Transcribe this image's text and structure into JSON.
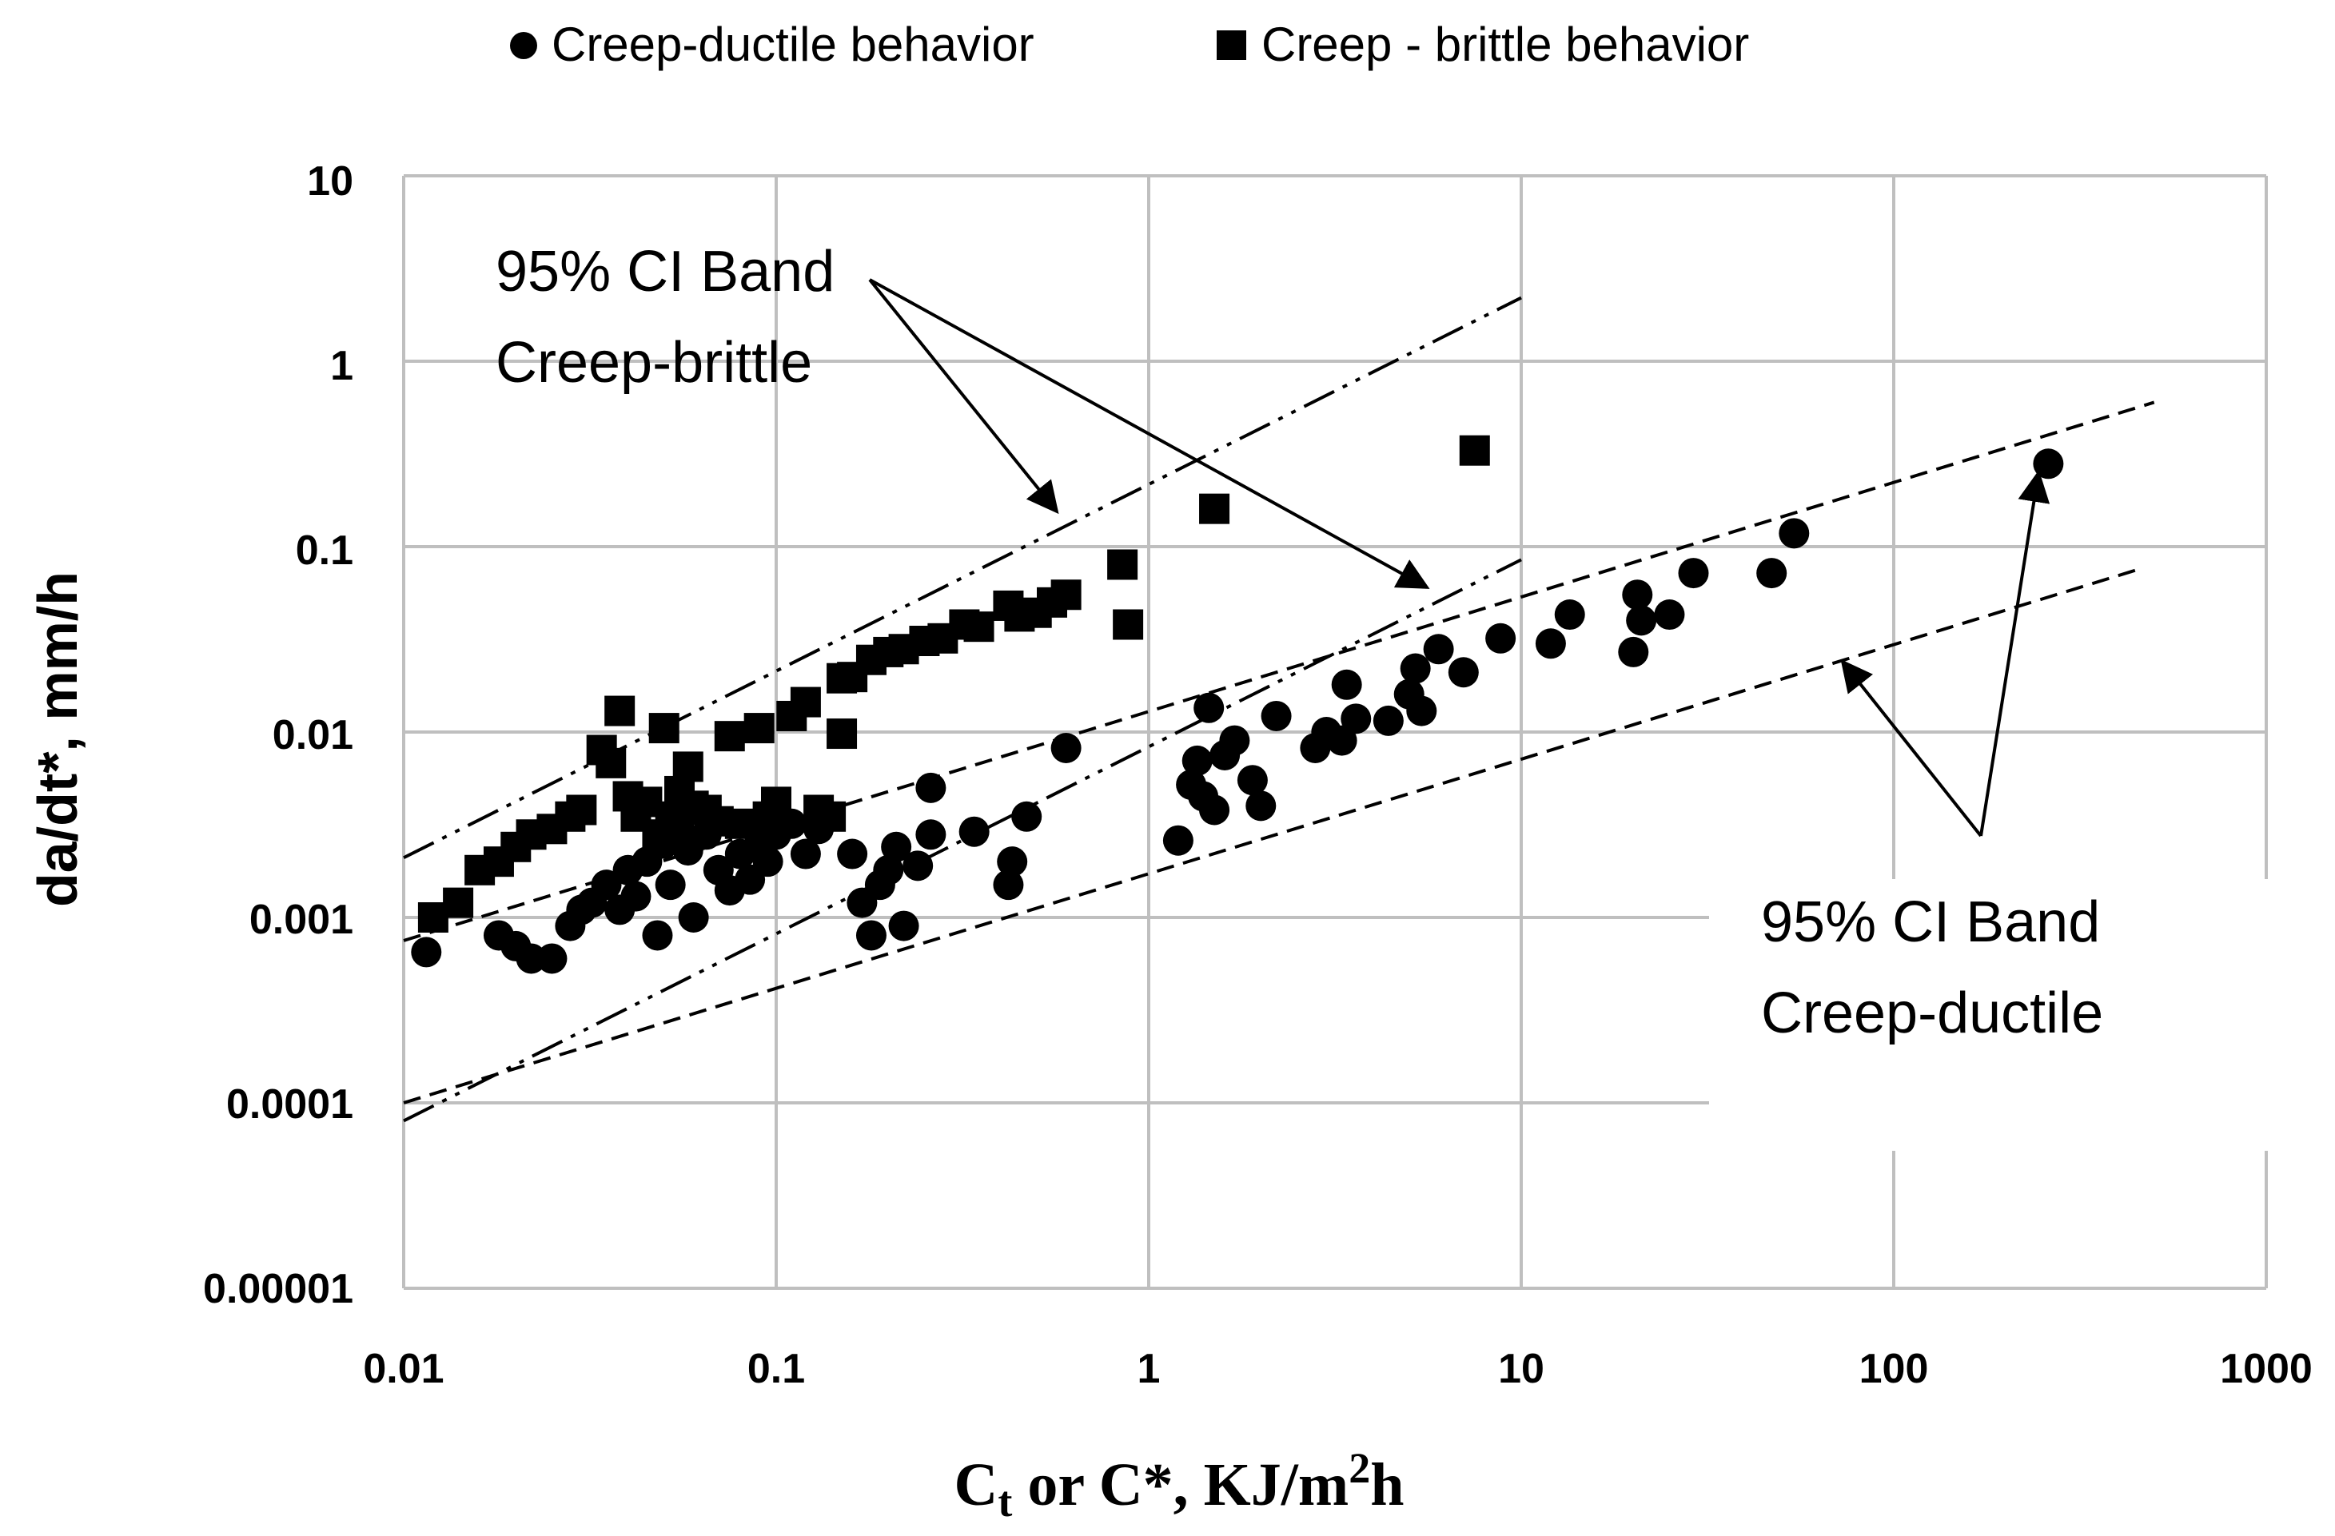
{
  "chart_data": {
    "type": "scatter",
    "xscale": "log",
    "yscale": "log",
    "xlim": [
      0.01,
      1000
    ],
    "ylim": [
      1e-05,
      10
    ],
    "x_ticks": [
      "0.01",
      "0.1",
      "1",
      "10",
      "100",
      "1000"
    ],
    "y_ticks": [
      "0.00001",
      "0.0001",
      "0.001",
      "0.01",
      "0.1",
      "1",
      "10"
    ],
    "xlabel": {
      "main": "C",
      "sub": "t",
      "rest": " or C*, KJ/m",
      "sup": "2",
      "end": "h"
    },
    "ylabel": "da/dt*, mm/h",
    "legend": [
      {
        "label": "Creep-ductile behavior",
        "marker": "circle"
      },
      {
        "label": "Creep - brittle behavior",
        "marker": "square"
      }
    ],
    "annotations": {
      "brittle_band": {
        "line1": "95% CI Band",
        "line2": "Creep-brittle"
      },
      "ductile_band": {
        "line1": "95% CI Band",
        "line2": "Creep-ductile"
      }
    },
    "series": [
      {
        "name": "Creep-ductile behavior",
        "marker": "circle",
        "points": [
          [
            0.0115,
            0.00065
          ],
          [
            0.018,
            0.0008
          ],
          [
            0.02,
            0.0007
          ],
          [
            0.022,
            0.0006
          ],
          [
            0.025,
            0.0006
          ],
          [
            0.028,
            0.0009
          ],
          [
            0.03,
            0.0011
          ],
          [
            0.032,
            0.0012
          ],
          [
            0.035,
            0.0015
          ],
          [
            0.038,
            0.0011
          ],
          [
            0.04,
            0.0018
          ],
          [
            0.042,
            0.0013
          ],
          [
            0.045,
            0.002
          ],
          [
            0.048,
            0.0008
          ],
          [
            0.05,
            0.0025
          ],
          [
            0.052,
            0.0015
          ],
          [
            0.055,
            0.003
          ],
          [
            0.058,
            0.0023
          ],
          [
            0.06,
            0.001
          ],
          [
            0.065,
            0.0028
          ],
          [
            0.07,
            0.0018
          ],
          [
            0.075,
            0.0014
          ],
          [
            0.08,
            0.0022
          ],
          [
            0.085,
            0.0016
          ],
          [
            0.09,
            0.0025
          ],
          [
            0.095,
            0.002
          ],
          [
            0.1,
            0.0028
          ],
          [
            0.11,
            0.0032
          ],
          [
            0.12,
            0.0022
          ],
          [
            0.13,
            0.003
          ],
          [
            0.16,
            0.0022
          ],
          [
            0.17,
            0.0012
          ],
          [
            0.18,
            0.0008
          ],
          [
            0.19,
            0.0015
          ],
          [
            0.2,
            0.0018
          ],
          [
            0.21,
            0.0024
          ],
          [
            0.22,
            0.0009
          ],
          [
            0.24,
            0.0019
          ],
          [
            0.26,
            0.0028
          ],
          [
            0.26,
            0.005
          ],
          [
            0.34,
            0.0029
          ],
          [
            0.42,
            0.0015
          ],
          [
            0.43,
            0.002
          ],
          [
            0.47,
            0.0035
          ],
          [
            0.6,
            0.0082
          ],
          [
            1.2,
            0.0026
          ],
          [
            1.3,
            0.0052
          ],
          [
            1.35,
            0.007
          ],
          [
            1.4,
            0.0045
          ],
          [
            1.45,
            0.0135
          ],
          [
            1.5,
            0.0038
          ],
          [
            1.6,
            0.0075
          ],
          [
            1.7,
            0.009
          ],
          [
            1.9,
            0.0055
          ],
          [
            2.0,
            0.004
          ],
          [
            2.2,
            0.0122
          ],
          [
            2.8,
            0.0082
          ],
          [
            3.0,
            0.01
          ],
          [
            3.3,
            0.009
          ],
          [
            3.4,
            0.018
          ],
          [
            3.6,
            0.0118
          ],
          [
            4.4,
            0.0115
          ],
          [
            5.0,
            0.016
          ],
          [
            5.2,
            0.022
          ],
          [
            5.4,
            0.013
          ],
          [
            6.0,
            0.028
          ],
          [
            7.0,
            0.021
          ],
          [
            8.8,
            0.032
          ],
          [
            12.0,
            0.03
          ],
          [
            13.5,
            0.043
          ],
          [
            20.0,
            0.027
          ],
          [
            20.5,
            0.055
          ],
          [
            21.0,
            0.04
          ],
          [
            25.0,
            0.043
          ],
          [
            29.0,
            0.072
          ],
          [
            47.0,
            0.072
          ],
          [
            54.0,
            0.118
          ],
          [
            260.0,
            0.28
          ]
        ]
      },
      {
        "name": "Creep - brittle behavior",
        "marker": "square",
        "points": [
          [
            0.012,
            0.001
          ],
          [
            0.014,
            0.0012
          ],
          [
            0.016,
            0.0018
          ],
          [
            0.018,
            0.002
          ],
          [
            0.02,
            0.0024
          ],
          [
            0.022,
            0.0028
          ],
          [
            0.025,
            0.003
          ],
          [
            0.028,
            0.0035
          ],
          [
            0.03,
            0.0038
          ],
          [
            0.034,
            0.008
          ],
          [
            0.036,
            0.0068
          ],
          [
            0.038,
            0.013
          ],
          [
            0.04,
            0.0045
          ],
          [
            0.042,
            0.0035
          ],
          [
            0.045,
            0.0042
          ],
          [
            0.048,
            0.0028
          ],
          [
            0.05,
            0.0105
          ],
          [
            0.052,
            0.0035
          ],
          [
            0.055,
            0.0048
          ],
          [
            0.058,
            0.0065
          ],
          [
            0.06,
            0.004
          ],
          [
            0.065,
            0.0038
          ],
          [
            0.07,
            0.0033
          ],
          [
            0.075,
            0.0095
          ],
          [
            0.08,
            0.0032
          ],
          [
            0.09,
            0.0105
          ],
          [
            0.095,
            0.0035
          ],
          [
            0.1,
            0.0042
          ],
          [
            0.11,
            0.0122
          ],
          [
            0.12,
            0.0145
          ],
          [
            0.13,
            0.0038
          ],
          [
            0.14,
            0.0035
          ],
          [
            0.15,
            0.0098
          ],
          [
            0.15,
            0.0195
          ],
          [
            0.16,
            0.0198
          ],
          [
            0.18,
            0.0245
          ],
          [
            0.2,
            0.027
          ],
          [
            0.22,
            0.028
          ],
          [
            0.25,
            0.031
          ],
          [
            0.28,
            0.032
          ],
          [
            0.32,
            0.038
          ],
          [
            0.35,
            0.037
          ],
          [
            0.42,
            0.048
          ],
          [
            0.45,
            0.042
          ],
          [
            0.5,
            0.044
          ],
          [
            0.55,
            0.05
          ],
          [
            0.6,
            0.055
          ],
          [
            0.85,
            0.08
          ],
          [
            0.88,
            0.038
          ],
          [
            1.5,
            0.16
          ],
          [
            7.5,
            0.33
          ]
        ]
      }
    ],
    "fit_lines": [
      {
        "name": "brittle-upper",
        "style": "dash-dot-dot",
        "from": [
          0.01,
          0.0021
        ],
        "to": [
          10,
          2.2
        ]
      },
      {
        "name": "brittle-lower",
        "style": "dash-dot-dot",
        "from": [
          0.01,
          8e-05
        ],
        "to": [
          10,
          0.085
        ]
      },
      {
        "name": "ductile-upper",
        "style": "dash",
        "from": [
          0.01,
          0.00075
        ],
        "to": [
          500,
          0.6
        ]
      },
      {
        "name": "ductile-lower",
        "style": "dash",
        "from": [
          0.01,
          0.0001
        ],
        "to": [
          450,
          0.075
        ]
      }
    ]
  }
}
